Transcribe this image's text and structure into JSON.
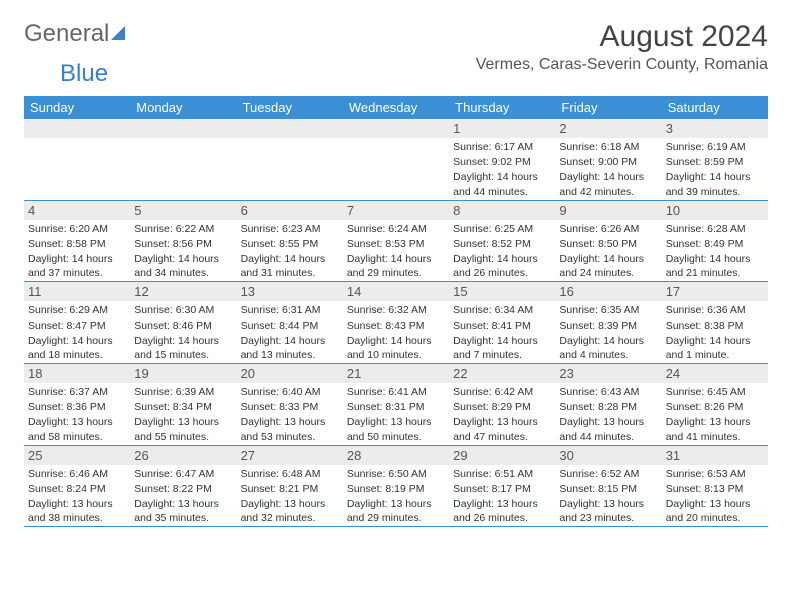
{
  "brand": {
    "part1": "General",
    "part2": "Blue"
  },
  "title": "August 2024",
  "location": "Vermes, Caras-Severin County, Romania",
  "day_headers": [
    "Sunday",
    "Monday",
    "Tuesday",
    "Wednesday",
    "Thursday",
    "Friday",
    "Saturday"
  ],
  "colors": {
    "header_bg": "#3b8fd4",
    "header_text": "#ffffff",
    "band_bg": "#ececec",
    "border": "#3b8fd4"
  },
  "weeks": [
    [
      null,
      null,
      null,
      null,
      {
        "n": "1",
        "sunrise": "Sunrise: 6:17 AM",
        "sunset": "Sunset: 9:02 PM",
        "daylight": "Daylight: 14 hours and 44 minutes."
      },
      {
        "n": "2",
        "sunrise": "Sunrise: 6:18 AM",
        "sunset": "Sunset: 9:00 PM",
        "daylight": "Daylight: 14 hours and 42 minutes."
      },
      {
        "n": "3",
        "sunrise": "Sunrise: 6:19 AM",
        "sunset": "Sunset: 8:59 PM",
        "daylight": "Daylight: 14 hours and 39 minutes."
      }
    ],
    [
      {
        "n": "4",
        "sunrise": "Sunrise: 6:20 AM",
        "sunset": "Sunset: 8:58 PM",
        "daylight": "Daylight: 14 hours and 37 minutes."
      },
      {
        "n": "5",
        "sunrise": "Sunrise: 6:22 AM",
        "sunset": "Sunset: 8:56 PM",
        "daylight": "Daylight: 14 hours and 34 minutes."
      },
      {
        "n": "6",
        "sunrise": "Sunrise: 6:23 AM",
        "sunset": "Sunset: 8:55 PM",
        "daylight": "Daylight: 14 hours and 31 minutes."
      },
      {
        "n": "7",
        "sunrise": "Sunrise: 6:24 AM",
        "sunset": "Sunset: 8:53 PM",
        "daylight": "Daylight: 14 hours and 29 minutes."
      },
      {
        "n": "8",
        "sunrise": "Sunrise: 6:25 AM",
        "sunset": "Sunset: 8:52 PM",
        "daylight": "Daylight: 14 hours and 26 minutes."
      },
      {
        "n": "9",
        "sunrise": "Sunrise: 6:26 AM",
        "sunset": "Sunset: 8:50 PM",
        "daylight": "Daylight: 14 hours and 24 minutes."
      },
      {
        "n": "10",
        "sunrise": "Sunrise: 6:28 AM",
        "sunset": "Sunset: 8:49 PM",
        "daylight": "Daylight: 14 hours and 21 minutes."
      }
    ],
    [
      {
        "n": "11",
        "sunrise": "Sunrise: 6:29 AM",
        "sunset": "Sunset: 8:47 PM",
        "daylight": "Daylight: 14 hours and 18 minutes."
      },
      {
        "n": "12",
        "sunrise": "Sunrise: 6:30 AM",
        "sunset": "Sunset: 8:46 PM",
        "daylight": "Daylight: 14 hours and 15 minutes."
      },
      {
        "n": "13",
        "sunrise": "Sunrise: 6:31 AM",
        "sunset": "Sunset: 8:44 PM",
        "daylight": "Daylight: 14 hours and 13 minutes."
      },
      {
        "n": "14",
        "sunrise": "Sunrise: 6:32 AM",
        "sunset": "Sunset: 8:43 PM",
        "daylight": "Daylight: 14 hours and 10 minutes."
      },
      {
        "n": "15",
        "sunrise": "Sunrise: 6:34 AM",
        "sunset": "Sunset: 8:41 PM",
        "daylight": "Daylight: 14 hours and 7 minutes."
      },
      {
        "n": "16",
        "sunrise": "Sunrise: 6:35 AM",
        "sunset": "Sunset: 8:39 PM",
        "daylight": "Daylight: 14 hours and 4 minutes."
      },
      {
        "n": "17",
        "sunrise": "Sunrise: 6:36 AM",
        "sunset": "Sunset: 8:38 PM",
        "daylight": "Daylight: 14 hours and 1 minute."
      }
    ],
    [
      {
        "n": "18",
        "sunrise": "Sunrise: 6:37 AM",
        "sunset": "Sunset: 8:36 PM",
        "daylight": "Daylight: 13 hours and 58 minutes."
      },
      {
        "n": "19",
        "sunrise": "Sunrise: 6:39 AM",
        "sunset": "Sunset: 8:34 PM",
        "daylight": "Daylight: 13 hours and 55 minutes."
      },
      {
        "n": "20",
        "sunrise": "Sunrise: 6:40 AM",
        "sunset": "Sunset: 8:33 PM",
        "daylight": "Daylight: 13 hours and 53 minutes."
      },
      {
        "n": "21",
        "sunrise": "Sunrise: 6:41 AM",
        "sunset": "Sunset: 8:31 PM",
        "daylight": "Daylight: 13 hours and 50 minutes."
      },
      {
        "n": "22",
        "sunrise": "Sunrise: 6:42 AM",
        "sunset": "Sunset: 8:29 PM",
        "daylight": "Daylight: 13 hours and 47 minutes."
      },
      {
        "n": "23",
        "sunrise": "Sunrise: 6:43 AM",
        "sunset": "Sunset: 8:28 PM",
        "daylight": "Daylight: 13 hours and 44 minutes."
      },
      {
        "n": "24",
        "sunrise": "Sunrise: 6:45 AM",
        "sunset": "Sunset: 8:26 PM",
        "daylight": "Daylight: 13 hours and 41 minutes."
      }
    ],
    [
      {
        "n": "25",
        "sunrise": "Sunrise: 6:46 AM",
        "sunset": "Sunset: 8:24 PM",
        "daylight": "Daylight: 13 hours and 38 minutes."
      },
      {
        "n": "26",
        "sunrise": "Sunrise: 6:47 AM",
        "sunset": "Sunset: 8:22 PM",
        "daylight": "Daylight: 13 hours and 35 minutes."
      },
      {
        "n": "27",
        "sunrise": "Sunrise: 6:48 AM",
        "sunset": "Sunset: 8:21 PM",
        "daylight": "Daylight: 13 hours and 32 minutes."
      },
      {
        "n": "28",
        "sunrise": "Sunrise: 6:50 AM",
        "sunset": "Sunset: 8:19 PM",
        "daylight": "Daylight: 13 hours and 29 minutes."
      },
      {
        "n": "29",
        "sunrise": "Sunrise: 6:51 AM",
        "sunset": "Sunset: 8:17 PM",
        "daylight": "Daylight: 13 hours and 26 minutes."
      },
      {
        "n": "30",
        "sunrise": "Sunrise: 6:52 AM",
        "sunset": "Sunset: 8:15 PM",
        "daylight": "Daylight: 13 hours and 23 minutes."
      },
      {
        "n": "31",
        "sunrise": "Sunrise: 6:53 AM",
        "sunset": "Sunset: 8:13 PM",
        "daylight": "Daylight: 13 hours and 20 minutes."
      }
    ]
  ]
}
